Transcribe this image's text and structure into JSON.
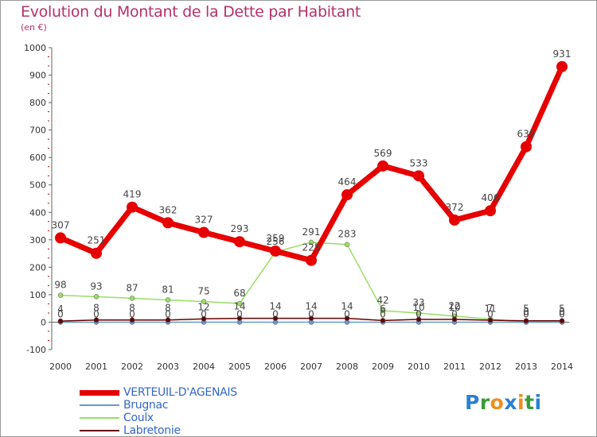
{
  "header": {
    "title": "Evolution du Montant de la Dette par Habitant",
    "subtitle": "(en €)"
  },
  "colors": {
    "title": "#b5316a",
    "axis_text": "#333333",
    "legend_text": "#3366cc",
    "grid_tick": "#cc0000"
  },
  "logo": {
    "letters": [
      {
        "char": "P",
        "color": "#2a7fd4"
      },
      {
        "char": "r",
        "color": "#3a9a3a"
      },
      {
        "char": "o",
        "color": "#f08c1e"
      },
      {
        "char": "x",
        "color": "#2a7fd4"
      },
      {
        "char": "i",
        "color": "#f08c1e"
      },
      {
        "char": "t",
        "color": "#3a9a3a"
      },
      {
        "char": "i",
        "color": "#2a7fd4"
      }
    ]
  },
  "chart_data": {
    "type": "line",
    "title": "Evolution du Montant de la Dette par Habitant",
    "subtitle": "(en €)",
    "xlabel": "",
    "ylabel": "",
    "ylim": [
      -100,
      1000
    ],
    "yticks": [
      -100,
      0,
      100,
      200,
      300,
      400,
      500,
      600,
      700,
      800,
      900,
      1000
    ],
    "categories": [
      "2000",
      "2001",
      "2002",
      "2003",
      "2004",
      "2005",
      "2006",
      "2007",
      "2008",
      "2009",
      "2010",
      "2011",
      "2012",
      "2013",
      "2014"
    ],
    "series": [
      {
        "name": "VERTEUIL-D'AGENAIS",
        "color": "#e60000",
        "width": 7,
        "marker": 7,
        "values": [
          307,
          251,
          419,
          362,
          327,
          293,
          259,
          225,
          464,
          569,
          533,
          372,
          406,
          639,
          931
        ],
        "labels": [
          "307",
          "251",
          "419",
          "362",
          "327",
          "293",
          "259",
          "225",
          "464",
          "569",
          "533",
          "372",
          "406",
          "639",
          "931"
        ]
      },
      {
        "name": "Brugnac",
        "color": "#6699cc",
        "width": 1.5,
        "marker": 3,
        "values": [
          0,
          0,
          0,
          0,
          0,
          0,
          0,
          0,
          0,
          0,
          0,
          0,
          0,
          0,
          0
        ],
        "labels": [
          "0",
          "0",
          "0",
          "0",
          "0",
          "0",
          "0",
          "0",
          "0",
          "0",
          "0",
          "0",
          "0",
          "0",
          "0"
        ]
      },
      {
        "name": "Coulx",
        "color": "#99dd66",
        "width": 1.5,
        "marker": 3,
        "values": [
          98,
          93,
          87,
          81,
          75,
          68,
          256,
          291,
          283,
          42,
          33,
          22,
          11,
          0,
          0
        ],
        "labels": [
          "98",
          "93",
          "87",
          "81",
          "75",
          "68",
          "256",
          "291",
          "283",
          "42",
          "33",
          "22",
          "11",
          "0",
          "0"
        ]
      },
      {
        "name": "Labretonie",
        "color": "#660000",
        "width": 1.5,
        "marker": 3,
        "values": [
          4,
          8,
          8,
          8,
          12,
          14,
          14,
          14,
          14,
          6,
          10,
          10,
          7,
          5,
          5
        ],
        "labels": [
          "4",
          "8",
          "8",
          "8",
          "12",
          "14",
          "14",
          "14",
          "14",
          "6",
          "10",
          "10",
          "7",
          "5",
          "5"
        ]
      }
    ],
    "legend_position": "bottom-left"
  }
}
